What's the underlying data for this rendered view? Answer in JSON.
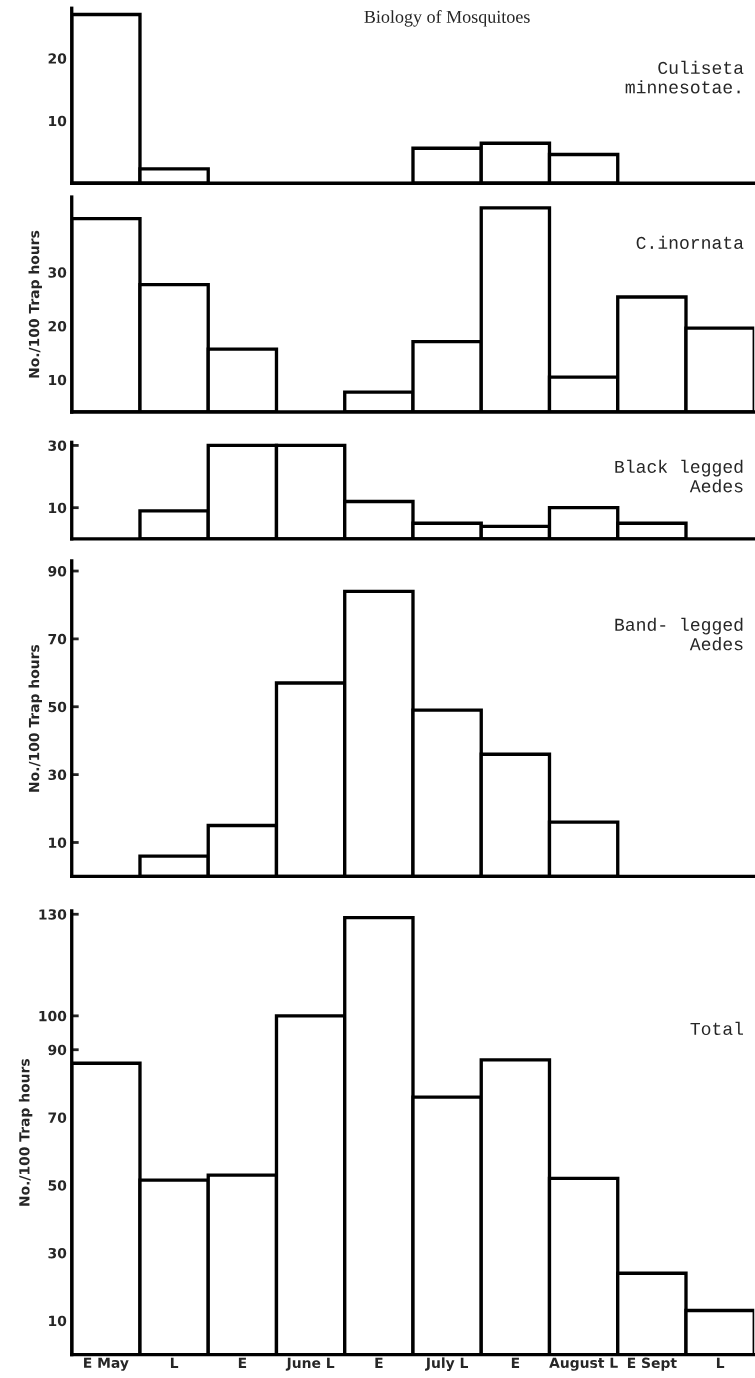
{
  "chart_data": [
    {
      "type": "bar",
      "title": "Culiseta\nminnesotae.",
      "annotations": [
        "Biology of Mosquitoes"
      ],
      "categories": [
        null,
        null,
        null,
        null,
        null,
        null,
        null,
        null,
        null,
        null
      ],
      "values": [
        27,
        2.3,
        null,
        null,
        null,
        5.6,
        6.4,
        4.6,
        null,
        null
      ],
      "color": "#ffffff",
      "ylim": [
        0,
        28
      ],
      "yticks": [
        10,
        20
      ],
      "tick_labels": "y",
      "grid": false,
      "legend": false
    },
    {
      "type": "bar",
      "title": "C.inornata",
      "ylabel": "No./100 Trap hours",
      "categories": [
        null,
        null,
        null,
        null,
        null,
        null,
        null,
        null,
        null,
        null
      ],
      "values": [
        40,
        27.7,
        15.7,
        null,
        7.7,
        17.1,
        42,
        10.5,
        25.4,
        19.6
      ],
      "color": "#ffffff",
      "ylim": [
        4,
        44
      ],
      "yticks": [
        10,
        20,
        30
      ],
      "tick_labels": "y",
      "grid": false,
      "legend": false
    },
    {
      "type": "bar",
      "title": "Black legged\nAedes",
      "categories": [
        null,
        null,
        null,
        null,
        null,
        null,
        null,
        null,
        null,
        null
      ],
      "values": [
        null,
        9,
        30,
        30,
        12,
        5,
        4,
        10,
        5,
        null
      ],
      "color": "#ffffff",
      "ylim": [
        0,
        31
      ],
      "yticks": [
        10,
        30
      ],
      "tick_labels": "y",
      "grid": false,
      "legend": false
    },
    {
      "type": "bar",
      "title": "Band- legged\nAedes",
      "ylabel": "No./100 Trap hours",
      "categories": [
        null,
        null,
        null,
        null,
        null,
        null,
        null,
        null,
        null,
        null
      ],
      "values": [
        null,
        6,
        15,
        57,
        84,
        49,
        36,
        16,
        null,
        null
      ],
      "color": "#ffffff",
      "ylim": [
        0,
        93
      ],
      "yticks": [
        10,
        30,
        50,
        70,
        90
      ],
      "tick_labels": "y",
      "grid": false,
      "legend": false
    },
    {
      "type": "bar",
      "title": "Total",
      "ylabel": "No./100 Trap hours",
      "categories": [
        "E May",
        "L",
        "E",
        "June L",
        "E",
        "July L",
        "E",
        "August L",
        "E Sept",
        "L"
      ],
      "values": [
        86,
        51.5,
        53,
        100,
        129,
        76,
        87,
        52,
        24,
        13
      ],
      "color": "#ffffff",
      "ylim": [
        0,
        131
      ],
      "yticks": [
        10,
        30,
        50,
        70,
        90,
        100,
        130
      ],
      "grid": false,
      "legend": false
    }
  ]
}
